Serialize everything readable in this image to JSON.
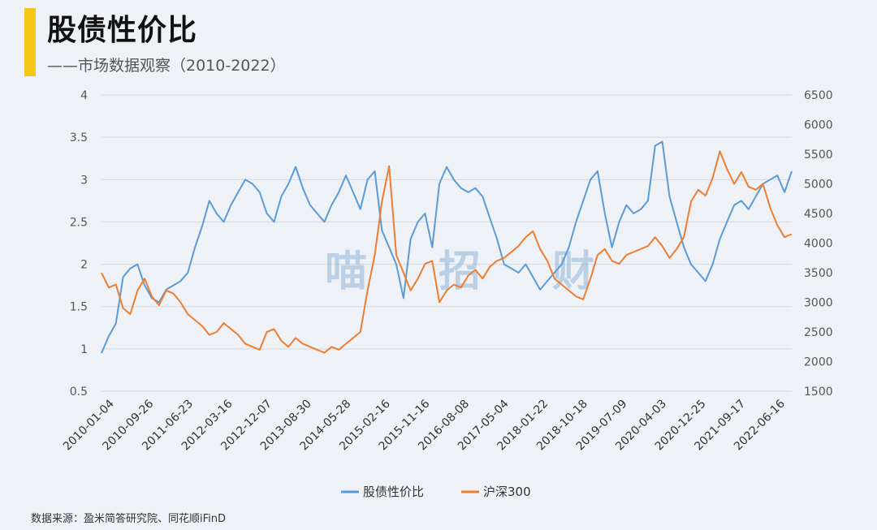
{
  "header": {
    "title": "股债性价比",
    "subtitle": "——市场数据观察（2010-2022）"
  },
  "footer": {
    "source": "数据来源：盈米简答研究院、同花顺iFinD"
  },
  "watermark": [
    "喵",
    "招",
    "财"
  ],
  "colors": {
    "accent": "#f5c518",
    "series1": "#5b9bd5",
    "series2": "#ed7d31"
  },
  "chart_data": {
    "type": "line",
    "x_tick_labels": [
      "2010-01-04",
      "2010-09-26",
      "2011-06-23",
      "2012-03-16",
      "2012-12-07",
      "2013-08-30",
      "2014-05-28",
      "2015-02-16",
      "2015-11-16",
      "2016-08-08",
      "2017-05-04",
      "2018-01-22",
      "2018-10-18",
      "2019-07-09",
      "2020-04-03",
      "2020-12-25",
      "2021-09-17",
      "2022-06-16"
    ],
    "y_left": {
      "lim": [
        0.5,
        4
      ],
      "ticks": [
        "0.5",
        "1",
        "1.5",
        "2",
        "2.5",
        "3",
        "3.5",
        "4"
      ]
    },
    "y_right": {
      "lim": [
        1500,
        6500
      ],
      "ticks": [
        "1500",
        "2000",
        "2500",
        "3000",
        "3500",
        "4000",
        "4500",
        "5000",
        "5500",
        "6000",
        "6500"
      ]
    },
    "legend_position": "bottom",
    "grid": true,
    "series": [
      {
        "name": "股债性价比",
        "axis": "left",
        "values": [
          0.95,
          1.15,
          1.3,
          1.85,
          1.95,
          2.0,
          1.75,
          1.6,
          1.55,
          1.7,
          1.75,
          1.8,
          1.9,
          2.2,
          2.45,
          2.75,
          2.6,
          2.5,
          2.7,
          2.85,
          3.0,
          2.95,
          2.85,
          2.6,
          2.5,
          2.8,
          2.95,
          3.15,
          2.9,
          2.7,
          2.6,
          2.5,
          2.7,
          2.85,
          3.05,
          2.85,
          2.65,
          3.0,
          3.1,
          2.4,
          2.2,
          2.0,
          1.6,
          2.3,
          2.5,
          2.6,
          2.2,
          2.95,
          3.15,
          3.0,
          2.9,
          2.85,
          2.9,
          2.8,
          2.55,
          2.3,
          2.0,
          1.95,
          1.9,
          2.0,
          1.85,
          1.7,
          1.8,
          1.9,
          2.0,
          2.2,
          2.5,
          2.75,
          3.0,
          3.1,
          2.6,
          2.2,
          2.5,
          2.7,
          2.6,
          2.65,
          2.75,
          3.4,
          3.45,
          2.8,
          2.5,
          2.2,
          2.0,
          1.9,
          1.8,
          2.0,
          2.3,
          2.5,
          2.7,
          2.75,
          2.65,
          2.8,
          2.95,
          3.0,
          3.05,
          2.85,
          3.1
        ]
      },
      {
        "name": "沪深300",
        "axis": "right",
        "values": [
          3500,
          3250,
          3300,
          2900,
          2800,
          3200,
          3400,
          3100,
          2950,
          3200,
          3150,
          3000,
          2800,
          2700,
          2600,
          2450,
          2500,
          2650,
          2550,
          2450,
          2300,
          2250,
          2200,
          2500,
          2550,
          2350,
          2250,
          2400,
          2300,
          2250,
          2200,
          2150,
          2250,
          2200,
          2300,
          2400,
          2500,
          3200,
          3800,
          4700,
          5300,
          3800,
          3500,
          3200,
          3400,
          3650,
          3700,
          3000,
          3200,
          3300,
          3250,
          3450,
          3550,
          3400,
          3600,
          3700,
          3750,
          3850,
          3950,
          4100,
          4200,
          3900,
          3700,
          3400,
          3300,
          3200,
          3100,
          3050,
          3400,
          3800,
          3900,
          3700,
          3650,
          3800,
          3850,
          3900,
          3950,
          4100,
          3950,
          3750,
          3900,
          4100,
          4700,
          4900,
          4800,
          5100,
          5550,
          5250,
          5000,
          5200,
          4950,
          4900,
          5000,
          4600,
          4300,
          4100,
          4150
        ]
      }
    ]
  }
}
